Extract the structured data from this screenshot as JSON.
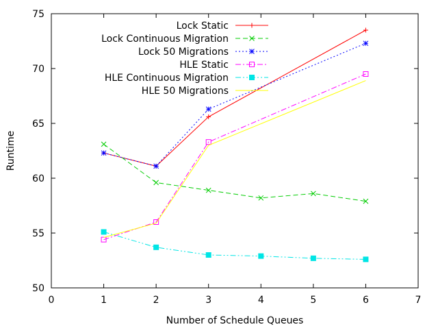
{
  "chart_data": {
    "type": "line",
    "xlabel": "Number of Schedule Queues",
    "ylabel": "Runtime",
    "xlim": [
      0,
      7
    ],
    "ylim": [
      50,
      75
    ],
    "xticks": [
      "0",
      "1",
      "2",
      "3",
      "4",
      "5",
      "6",
      "7"
    ],
    "yticks": [
      "50",
      "55",
      "60",
      "65",
      "70",
      "75"
    ],
    "grid": false,
    "legend_position": "top-right",
    "series": [
      {
        "name": "Lock Static",
        "color": "#ff0000",
        "dash": "solid",
        "marker": "plus",
        "points": [
          [
            1,
            62.3
          ],
          [
            2,
            61.1
          ],
          [
            3,
            65.6
          ],
          [
            6,
            73.5
          ]
        ]
      },
      {
        "name": "Lock Continuous Migration",
        "color": "#00cc00",
        "dash": "dashed",
        "marker": "cross",
        "points": [
          [
            1,
            63.1
          ],
          [
            2,
            59.6
          ],
          [
            3,
            58.9
          ],
          [
            4,
            58.2
          ],
          [
            5,
            58.6
          ],
          [
            6,
            57.9
          ]
        ]
      },
      {
        "name": "Lock 50 Migrations",
        "color": "#0000ff",
        "dash": "dotted",
        "marker": "star",
        "points": [
          [
            1,
            62.3
          ],
          [
            2,
            61.1
          ],
          [
            3,
            66.3
          ],
          [
            6,
            72.3
          ]
        ]
      },
      {
        "name": "HLE Static",
        "color": "#ff00ff",
        "dash": "dashdot",
        "marker": "open-square",
        "points": [
          [
            1,
            54.4
          ],
          [
            2,
            56.0
          ],
          [
            3,
            63.3
          ],
          [
            6,
            69.5
          ]
        ]
      },
      {
        "name": "HLE Continuous Migration",
        "color": "#00e5e5",
        "dash": "dashdotdot",
        "marker": "filled-square",
        "points": [
          [
            1,
            55.1
          ],
          [
            2,
            53.7
          ],
          [
            3,
            53.0
          ],
          [
            4,
            52.9
          ],
          [
            5,
            52.7
          ],
          [
            6,
            52.6
          ]
        ]
      },
      {
        "name": "HLE 50 Migrations",
        "color": "#ffff00",
        "dash": "solid",
        "marker": "none",
        "points": [
          [
            1,
            54.6
          ],
          [
            2,
            55.9
          ],
          [
            3,
            63.0
          ],
          [
            6,
            68.9
          ]
        ]
      }
    ]
  }
}
